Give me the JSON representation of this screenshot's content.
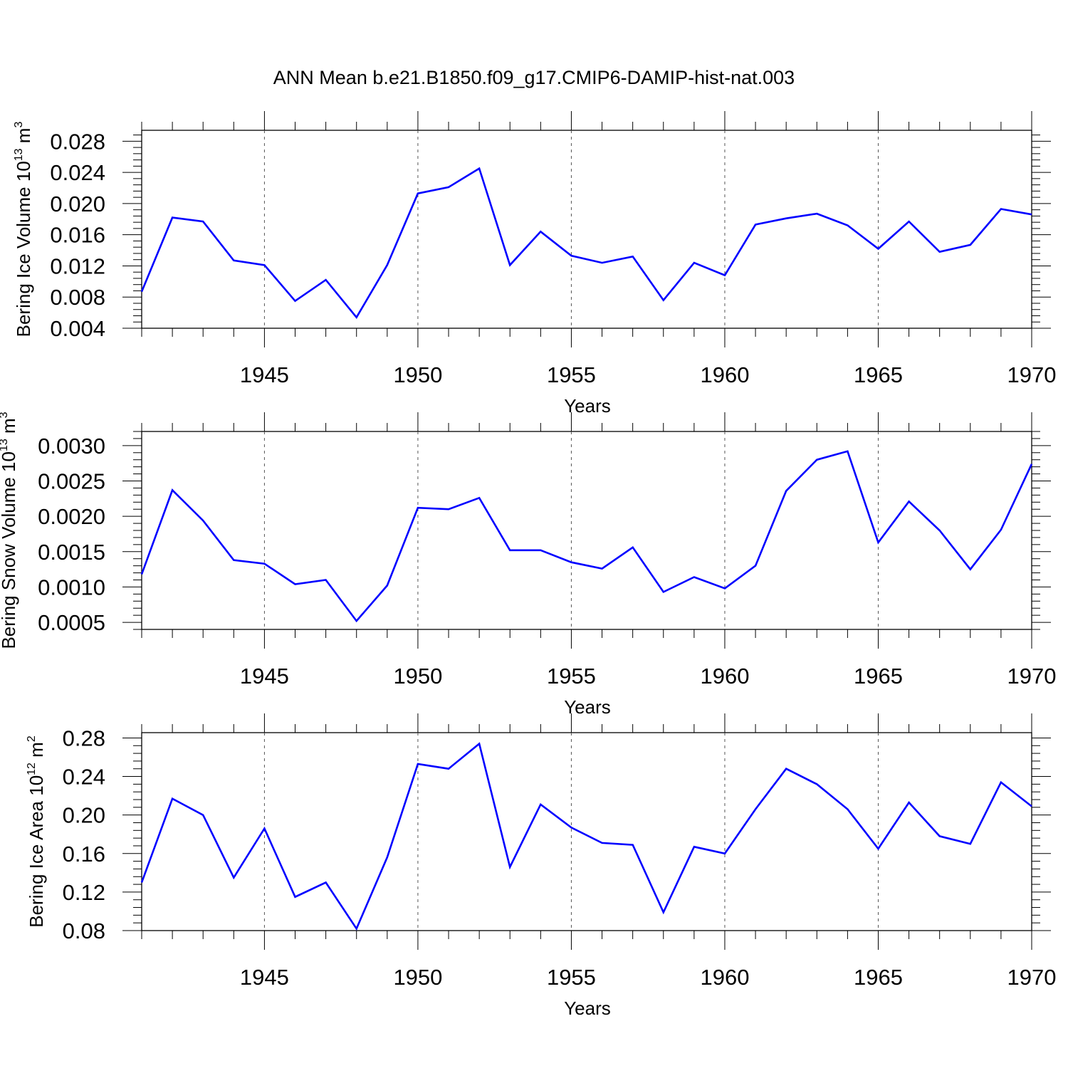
{
  "title": "ANN Mean b.e21.B1850.f09_g17.CMIP6-DAMIP-hist-nat.003",
  "chart_data": [
    {
      "type": "line",
      "ylabel_main": "Bering Ice Volume 10",
      "ylabel_exp": "13",
      "ylabel_unit": "m",
      "ylabel_unit_exp": "3",
      "xlabel": "Years",
      "xlim": [
        1941,
        1970
      ],
      "ylim": [
        0.004,
        0.0294
      ],
      "yticks": [
        0.004,
        0.008,
        0.012,
        0.016,
        0.02,
        0.024,
        0.028
      ],
      "ytick_labels": [
        "0.004",
        "0.008",
        "0.012",
        "0.016",
        "0.020",
        "0.024",
        "0.028"
      ],
      "xticks": [
        1945,
        1950,
        1955,
        1960,
        1965,
        1970
      ],
      "xtick_labels": [
        "1945",
        "1950",
        "1955",
        "1960",
        "1965",
        "1970"
      ],
      "color": "#0000ff",
      "x": [
        1941,
        1942,
        1943,
        1944,
        1945,
        1946,
        1947,
        1948,
        1949,
        1950,
        1951,
        1952,
        1953,
        1954,
        1955,
        1956,
        1957,
        1958,
        1959,
        1960,
        1961,
        1962,
        1963,
        1964,
        1965,
        1966,
        1967,
        1968,
        1969,
        1970
      ],
      "y": [
        0.0087,
        0.0182,
        0.0177,
        0.0127,
        0.0121,
        0.0075,
        0.0102,
        0.0054,
        0.0121,
        0.0213,
        0.0221,
        0.0245,
        0.0121,
        0.0164,
        0.0133,
        0.0124,
        0.0132,
        0.0076,
        0.0124,
        0.0108,
        0.0173,
        0.0181,
        0.0187,
        0.0172,
        0.0142,
        0.0177,
        0.0138,
        0.0147,
        0.0193,
        0.0186
      ]
    },
    {
      "type": "line",
      "ylabel_main": "Bering Snow Volume 10",
      "ylabel_exp": "13",
      "ylabel_unit": "m",
      "ylabel_unit_exp": "3",
      "xlabel": "Years",
      "xlim": [
        1941,
        1970
      ],
      "ylim": [
        0.0004,
        0.0032
      ],
      "yticks": [
        0.0005,
        0.001,
        0.0015,
        0.002,
        0.0025,
        0.003
      ],
      "ytick_labels": [
        "0.0005",
        "0.0010",
        "0.0015",
        "0.0020",
        "0.0025",
        "0.0030"
      ],
      "xticks": [
        1945,
        1950,
        1955,
        1960,
        1965,
        1970
      ],
      "xtick_labels": [
        "1945",
        "1950",
        "1955",
        "1960",
        "1965",
        "1970"
      ],
      "color": "#0000ff",
      "x": [
        1941,
        1942,
        1943,
        1944,
        1945,
        1946,
        1947,
        1948,
        1949,
        1950,
        1951,
        1952,
        1953,
        1954,
        1955,
        1956,
        1957,
        1958,
        1959,
        1960,
        1961,
        1962,
        1963,
        1964,
        1965,
        1966,
        1967,
        1968,
        1969,
        1970
      ],
      "y": [
        0.00118,
        0.00237,
        0.00194,
        0.00138,
        0.00133,
        0.00104,
        0.0011,
        0.00052,
        0.00102,
        0.00212,
        0.0021,
        0.00226,
        0.00152,
        0.00152,
        0.00135,
        0.00126,
        0.00156,
        0.00093,
        0.00114,
        0.00098,
        0.0013,
        0.00236,
        0.0028,
        0.00292,
        0.00163,
        0.00221,
        0.0018,
        0.00125,
        0.00181,
        0.00274
      ]
    },
    {
      "type": "line",
      "ylabel_main": "Bering Ice Area 10",
      "ylabel_exp": "12",
      "ylabel_unit": "m",
      "ylabel_unit_exp": "2",
      "xlabel": "Years",
      "xlim": [
        1941,
        1970
      ],
      "ylim": [
        0.08,
        0.2855
      ],
      "yticks": [
        0.08,
        0.12,
        0.16,
        0.2,
        0.24,
        0.28
      ],
      "ytick_labels": [
        "0.08",
        "0.12",
        "0.16",
        "0.20",
        "0.24",
        "0.28"
      ],
      "xticks": [
        1945,
        1950,
        1955,
        1960,
        1965,
        1970
      ],
      "xtick_labels": [
        "1945",
        "1950",
        "1955",
        "1960",
        "1965",
        "1970"
      ],
      "color": "#0000ff",
      "x": [
        1941,
        1942,
        1943,
        1944,
        1945,
        1946,
        1947,
        1948,
        1949,
        1950,
        1951,
        1952,
        1953,
        1954,
        1955,
        1956,
        1957,
        1958,
        1959,
        1960,
        1961,
        1962,
        1963,
        1964,
        1965,
        1966,
        1967,
        1968,
        1969,
        1970
      ],
      "y": [
        0.13,
        0.217,
        0.2,
        0.135,
        0.186,
        0.115,
        0.13,
        0.082,
        0.156,
        0.253,
        0.248,
        0.274,
        0.146,
        0.211,
        0.187,
        0.171,
        0.169,
        0.099,
        0.167,
        0.16,
        0.206,
        0.248,
        0.232,
        0.206,
        0.165,
        0.213,
        0.178,
        0.17,
        0.234,
        0.209
      ]
    }
  ]
}
